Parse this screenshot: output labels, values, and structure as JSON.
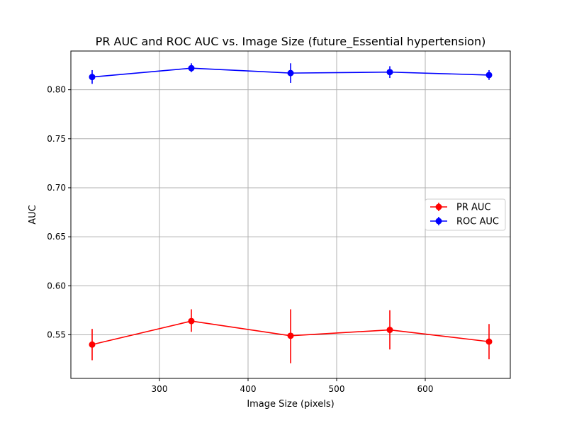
{
  "chart_data": {
    "type": "line",
    "title": "PR AUC and ROC AUC vs. Image Size (future_Essential hypertension)",
    "xlabel": "Image Size (pixels)",
    "ylabel": "AUC",
    "xlim": [
      200,
      696
    ],
    "ylim": [
      0.5055,
      0.8395
    ],
    "xticks": [
      300,
      400,
      500,
      600
    ],
    "xtick_labels": [
      "300",
      "400",
      "500",
      "600"
    ],
    "yticks": [
      0.55,
      0.6,
      0.65,
      0.7,
      0.75,
      0.8
    ],
    "ytick_labels": [
      "0.55",
      "0.60",
      "0.65",
      "0.70",
      "0.75",
      "0.80"
    ],
    "grid": true,
    "legend_position": "center-right",
    "x": [
      224,
      336,
      448,
      560,
      672
    ],
    "series": [
      {
        "name": "PR AUC",
        "color": "#ff0000",
        "values": [
          0.54,
          0.564,
          0.549,
          0.555,
          0.543
        ],
        "err_low": [
          0.524,
          0.553,
          0.521,
          0.535,
          0.525
        ],
        "err_high": [
          0.556,
          0.576,
          0.576,
          0.575,
          0.561
        ]
      },
      {
        "name": "ROC AUC",
        "color": "#0000ff",
        "values": [
          0.813,
          0.822,
          0.817,
          0.818,
          0.815
        ],
        "err_low": [
          0.806,
          0.818,
          0.807,
          0.812,
          0.81
        ],
        "err_high": [
          0.82,
          0.827,
          0.827,
          0.824,
          0.82
        ]
      }
    ]
  }
}
